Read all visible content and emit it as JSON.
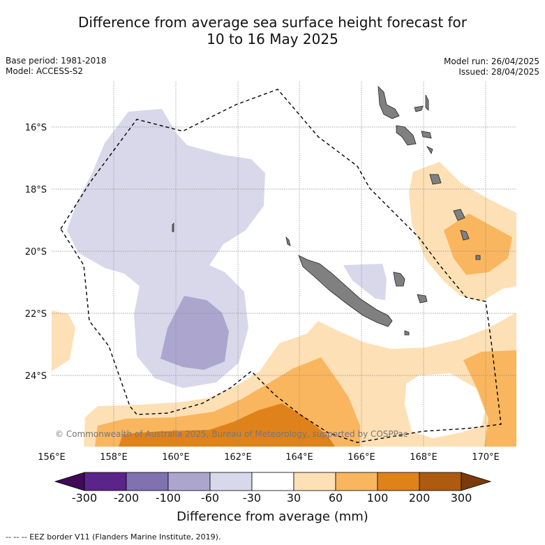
{
  "title_line1": "Difference from average sea surface height forecast for",
  "title_line2": "10 to 16 May 2025",
  "meta_left": {
    "base_period": "Base period: 1981-2018",
    "model": "Model: ACCESS-S2"
  },
  "meta_right": {
    "model_run": "Model run: 26/04/2025",
    "issued": "Issued: 28/04/2025"
  },
  "copyright": "© Commonwealth of Australia 2025, Bureau of Meteorology, supported by COSPPac",
  "lon_labels": [
    "156°E",
    "158°E",
    "160°E",
    "162°E",
    "164°E",
    "166°E",
    "168°E",
    "170°E"
  ],
  "lat_labels": [
    "16°S",
    "18°S",
    "20°S",
    "22°S",
    "24°S"
  ],
  "colorbar": {
    "label": "Difference from average (mm)",
    "ticks": [
      "-300",
      "-200",
      "-100",
      "-60",
      "-30",
      "30",
      "60",
      "100",
      "200",
      "300"
    ],
    "colors": [
      "#3f0a57",
      "#5a2489",
      "#7f72ae",
      "#aca6cf",
      "#d8d8ea",
      "#ffffff",
      "#fde0b5",
      "#f9b65e",
      "#e0821a",
      "#ae5a0f",
      "#7a3a0b"
    ]
  },
  "eez_note": "--  --  -- EEZ border V11 (Flanders Marine Institute, 2019)."
}
